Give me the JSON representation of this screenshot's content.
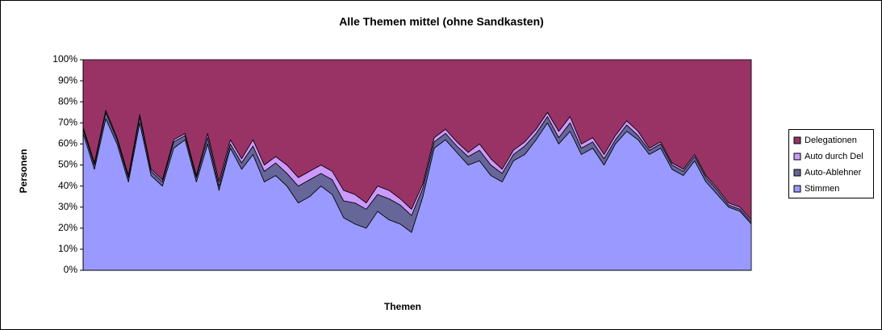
{
  "chart_data": {
    "type": "stacked_area_percent",
    "title": "Alle Themen mittel (ohne Sandkasten)",
    "x_label": "Themen",
    "y_label": "Personen",
    "categories": [
      null,
      null,
      null,
      null,
      null,
      null,
      null,
      null,
      null,
      null,
      null,
      null,
      null,
      null,
      null,
      null,
      null,
      null,
      null,
      null,
      null,
      null,
      null,
      null,
      null,
      null,
      null,
      null,
      null,
      null,
      null,
      null,
      null,
      null,
      null,
      null,
      null,
      null,
      null,
      null,
      null,
      null,
      null,
      null,
      null,
      null,
      null,
      null,
      null,
      null,
      null,
      null,
      null,
      null,
      null,
      null,
      null,
      null,
      null,
      null
    ],
    "series": [
      {
        "name": "Stimmen",
        "color": "#9999ff",
        "values": [
          65,
          48,
          72,
          60,
          42,
          70,
          45,
          40,
          58,
          62,
          42,
          60,
          38,
          58,
          48,
          55,
          42,
          45,
          40,
          32,
          35,
          40,
          36,
          25,
          22,
          20,
          28,
          24,
          22,
          18,
          35,
          58,
          62,
          56,
          50,
          52,
          45,
          42,
          52,
          55,
          62,
          70,
          60,
          66,
          55,
          58,
          50,
          60,
          66,
          62,
          55,
          58,
          48,
          45,
          52,
          42,
          36,
          30,
          28,
          22
        ]
      },
      {
        "name": "Auto-Ablehner",
        "color": "#666699",
        "values": [
          2,
          2,
          3,
          2,
          2,
          3,
          2,
          2,
          3,
          2,
          2,
          3,
          2,
          2,
          3,
          4,
          5,
          6,
          6,
          8,
          8,
          6,
          7,
          8,
          10,
          9,
          8,
          10,
          9,
          8,
          4,
          3,
          3,
          3,
          4,
          5,
          5,
          4,
          3,
          4,
          3,
          3,
          3,
          4,
          3,
          3,
          3,
          2,
          3,
          2,
          2,
          2,
          2,
          2,
          2,
          2,
          2,
          1,
          1,
          1
        ]
      },
      {
        "name": "Auto durch Del",
        "color": "#cc99ff",
        "values": [
          1,
          1,
          1,
          1,
          1,
          1,
          1,
          1,
          1,
          1,
          1,
          2,
          2,
          2,
          2,
          3,
          3,
          3,
          4,
          4,
          4,
          4,
          4,
          5,
          4,
          3,
          4,
          4,
          3,
          3,
          2,
          2,
          2,
          2,
          2,
          3,
          3,
          2,
          2,
          2,
          2,
          2,
          3,
          3,
          2,
          2,
          2,
          2,
          2,
          2,
          1,
          1,
          1,
          1,
          1,
          1,
          1,
          1,
          1,
          1
        ]
      },
      {
        "name": "Delegationen",
        "color": "#993366",
        "values": [
          32,
          49,
          24,
          37,
          55,
          26,
          52,
          57,
          38,
          35,
          55,
          35,
          58,
          38,
          47,
          38,
          50,
          46,
          50,
          56,
          53,
          50,
          53,
          62,
          64,
          68,
          60,
          62,
          66,
          71,
          59,
          37,
          33,
          39,
          44,
          40,
          47,
          52,
          43,
          39,
          33,
          25,
          34,
          27,
          40,
          37,
          45,
          36,
          29,
          34,
          42,
          39,
          49,
          52,
          45,
          55,
          61,
          68,
          70,
          76
        ]
      }
    ],
    "ylim": [
      0,
      100
    ],
    "yticks": [
      {
        "value": 0,
        "label": "0%"
      },
      {
        "value": 10,
        "label": "10%"
      },
      {
        "value": 20,
        "label": "20%"
      },
      {
        "value": 30,
        "label": "30%"
      },
      {
        "value": 40,
        "label": "40%"
      },
      {
        "value": 50,
        "label": "50%"
      },
      {
        "value": 60,
        "label": "60%"
      },
      {
        "value": 70,
        "label": "70%"
      },
      {
        "value": 80,
        "label": "80%"
      },
      {
        "value": 90,
        "label": "90%"
      },
      {
        "value": 100,
        "label": "100%"
      }
    ]
  }
}
